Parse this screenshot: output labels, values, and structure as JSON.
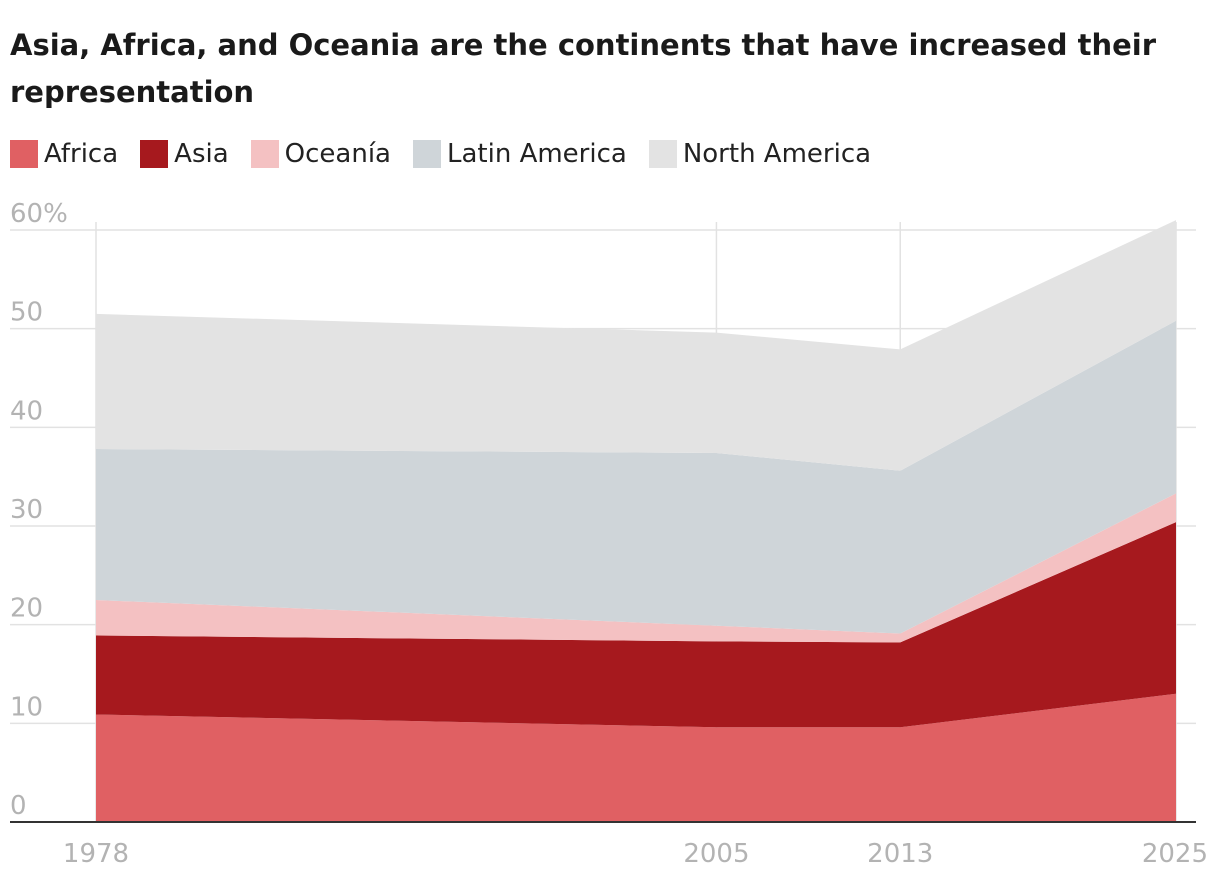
{
  "chart_data": {
    "type": "area",
    "stacked": true,
    "title": "Asia, Africa, and Oceania are the continents that have increased their representation",
    "x": [
      1978,
      2005,
      2013,
      2025
    ],
    "x_tick_labels": [
      "1978",
      "2005",
      "2013",
      "2025"
    ],
    "y_tick_labels": [
      "60%",
      "50",
      "40",
      "30",
      "20",
      "10",
      "0"
    ],
    "y_ticks": [
      60,
      50,
      40,
      30,
      20,
      10,
      0
    ],
    "ylim": [
      0,
      60
    ],
    "grid": true,
    "legend_position": "top-left",
    "series": [
      {
        "name": "Africa",
        "color": "#e06063",
        "values": [
          10.9,
          9.6,
          9.6,
          13.0
        ]
      },
      {
        "name": "Asia",
        "color": "#a6191e",
        "values": [
          8.0,
          8.7,
          8.6,
          17.4
        ]
      },
      {
        "name": "Oceanía",
        "color": "#f4c1c2",
        "values": [
          3.6,
          1.6,
          0.9,
          2.9
        ]
      },
      {
        "name": "Latin America",
        "color": "#cfd5d9",
        "values": [
          15.3,
          17.5,
          16.5,
          17.5
        ]
      },
      {
        "name": "North America",
        "color": "#e3e3e3",
        "values": [
          13.7,
          12.2,
          12.3,
          10.2
        ]
      }
    ]
  }
}
